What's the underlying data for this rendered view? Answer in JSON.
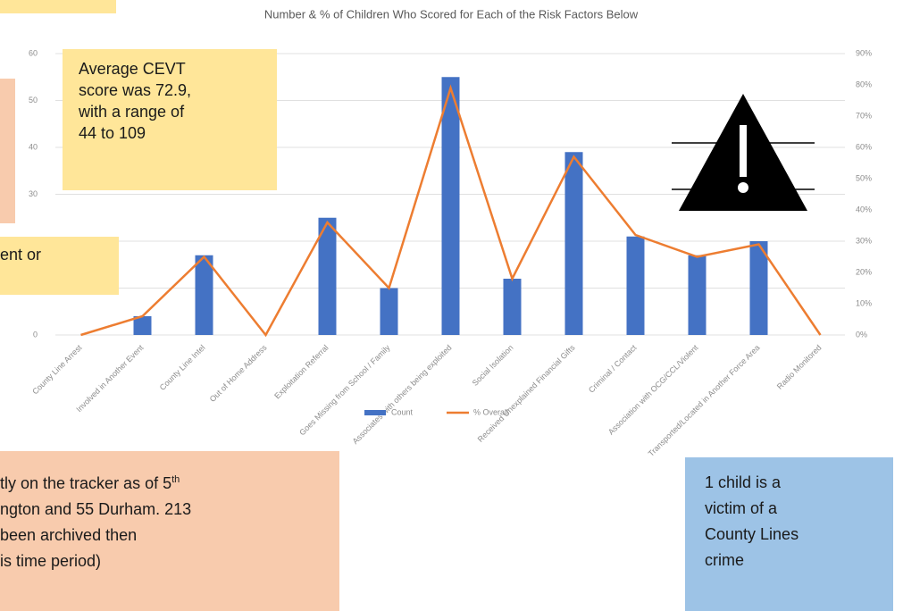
{
  "chart_data": {
    "type": "bar",
    "title": "Number & % of Children Who Scored for Each of the Risk Factors Below",
    "categories": [
      "County Line Arrest",
      "Involved in Another Event",
      "County Line Intel",
      "Out of Home Address",
      "Exploitation Referral",
      "Goes Missing from School / Family",
      "Associates with others being exploited",
      "Social Isolation",
      "Received Unexplained Financial Gifts",
      "Criminal / Contact",
      "Association with OCG/CCL/Violent",
      "Transported/Located in Another Force Area",
      "Radio Monitored"
    ],
    "series": [
      {
        "name": "Count",
        "color": "#4472c4",
        "values": [
          0,
          4,
          17,
          0,
          25,
          10,
          55,
          12,
          39,
          21,
          17,
          20,
          0
        ]
      },
      {
        "name": "% Overall",
        "color": "#ed7d31",
        "axis": "y2",
        "type": "line",
        "values": [
          0,
          6,
          25,
          0,
          36,
          15,
          79,
          18,
          57,
          32,
          25,
          29,
          0
        ]
      }
    ],
    "ylim": [
      0,
      60
    ],
    "yticks": [
      0,
      10,
      20,
      30,
      40,
      50,
      60
    ],
    "y2lim": [
      0,
      90
    ],
    "y2ticks": [
      {
        "value": 0,
        "label": "0%"
      },
      {
        "value": 10,
        "label": "10%"
      },
      {
        "value": 20,
        "label": "20%"
      },
      {
        "value": 30,
        "label": "30%"
      },
      {
        "value": 40,
        "label": "40%"
      },
      {
        "value": 50,
        "label": "50%"
      },
      {
        "value": 60,
        "label": "60%"
      },
      {
        "value": 70,
        "label": "70%"
      },
      {
        "value": 80,
        "label": "80%"
      },
      {
        "value": 90,
        "label": "90%"
      }
    ],
    "grid": true,
    "legend": "bottom"
  },
  "annotations": {
    "cevt": [
      "Average CEVT",
      "score was 72.9,",
      "with a range of",
      "44 to 109"
    ],
    "left_note": [
      "ent or"
    ],
    "tracker": {
      "first_line": "tly on the tracker as of 5",
      "superscript": "th",
      "lines": [
        "ngton and 55 Durham. 213",
        "been archived then",
        "is time period)"
      ]
    },
    "victim": [
      "1 child is a",
      "victim of a",
      "County Lines",
      "crime"
    ]
  }
}
